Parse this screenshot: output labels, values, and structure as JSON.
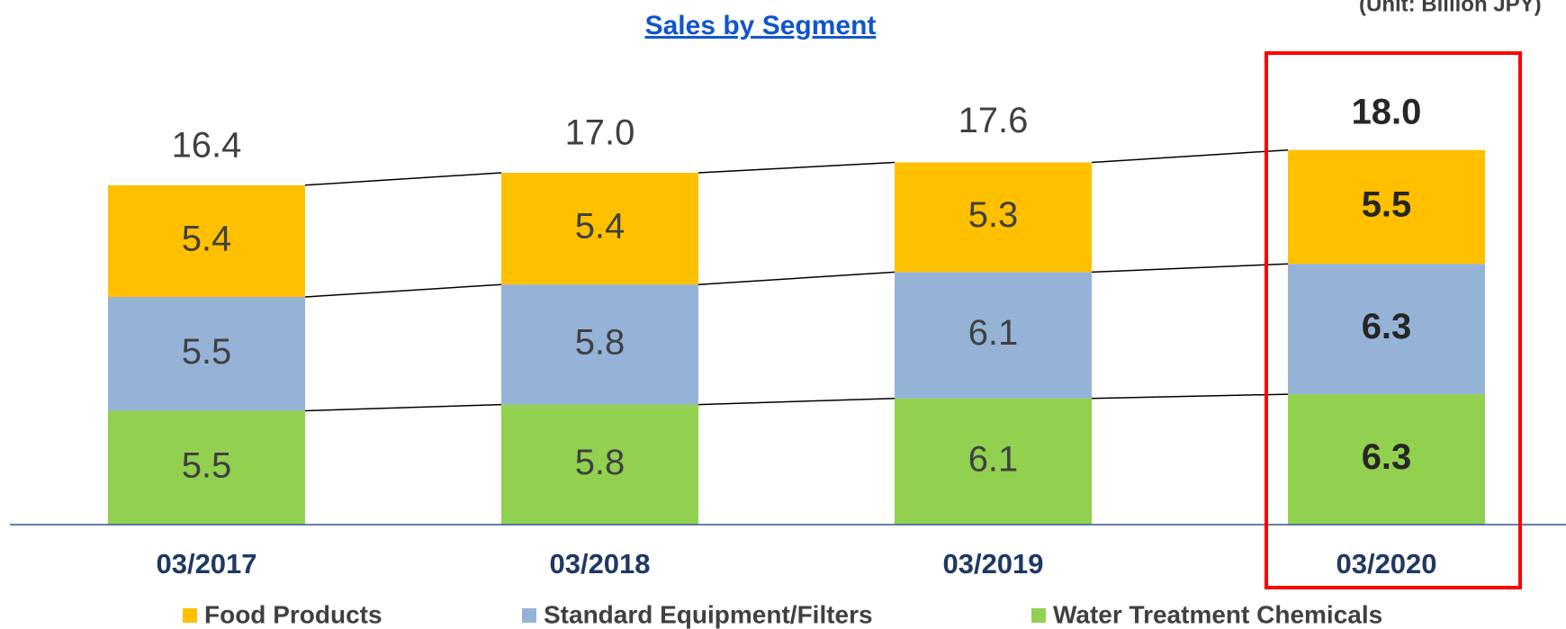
{
  "chart_data": {
    "type": "stacked-bar",
    "title": "Sales by Segment",
    "unit_label": "(Unit: Billion JPY)",
    "categories": [
      "03/2017",
      "03/2018",
      "03/2019",
      "03/2020"
    ],
    "series": [
      {
        "name": "Water Treatment Chemicals",
        "color": "#92d050",
        "values": [
          5.5,
          5.8,
          6.1,
          6.3
        ]
      },
      {
        "name": "Standard Equipment/Filters",
        "color": "#95b3d7",
        "values": [
          5.5,
          5.8,
          6.1,
          6.3
        ]
      },
      {
        "name": "Food Products",
        "color": "#ffc000",
        "values": [
          5.4,
          5.4,
          5.3,
          5.5
        ]
      }
    ],
    "totals": [
      16.4,
      17,
      17.6,
      18
    ],
    "total_labels": [
      "16.4",
      "17.0",
      "17.6",
      "18.0"
    ],
    "legend": "bottom"
  }
}
